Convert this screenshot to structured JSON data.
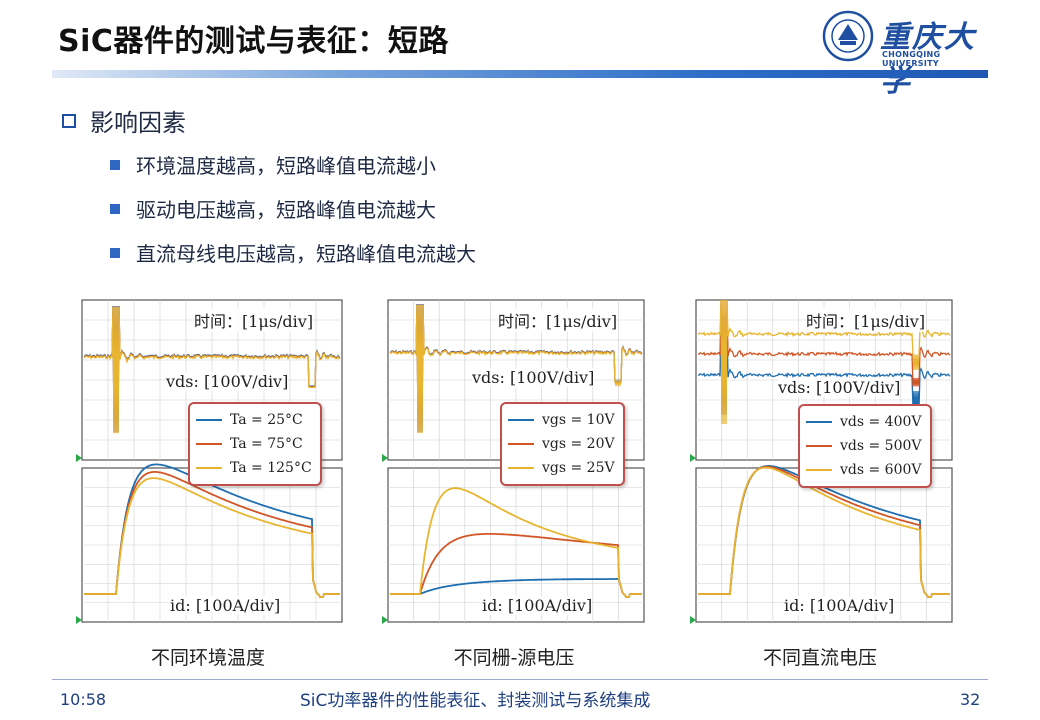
{
  "header": {
    "title": "SiC器件的测试与表征：短路",
    "logo_cn": "重庆大学",
    "logo_en": "CHONGQING UNIVERSITY"
  },
  "section": {
    "heading": "影响因素",
    "bullets": [
      "环境温度越高，短路峰值电流越小",
      "驱动电压越高，短路峰值电流越大",
      "直流母线电压越高，短路峰值电流越大"
    ]
  },
  "colors": {
    "blue": "#1f6eb0",
    "red": "#d25525",
    "yellow": "#e8b531",
    "accent": "#2f66c4"
  },
  "panels": [
    {
      "caption": "不同环境温度",
      "time_label": "时间：[1μs/div]",
      "vds_label": "vds: [100V/div]",
      "id_label": "id: [100A/div]",
      "legend": [
        "Ta = 25°C",
        "Ta = 75°C",
        "Ta = 125°C"
      ]
    },
    {
      "caption": "不同栅-源电压",
      "time_label": "时间：[1μs/div]",
      "vds_label": "vds: [100V/div]",
      "id_label": "id: [100A/div]",
      "legend": [
        "vgs = 10V",
        "vgs = 20V",
        "vgs = 25V"
      ]
    },
    {
      "caption": "不同直流电压",
      "time_label": "时间：[1μs/div]",
      "vds_label": "vds: [100V/div]",
      "id_label": "id: [100A/div]",
      "legend": [
        "vds = 400V",
        "vds = 500V",
        "vds = 600V"
      ]
    }
  ],
  "footer": {
    "time": "10:58",
    "title": "SiC功率器件的性能表征、封装测试与系统集成",
    "page": "32"
  }
}
